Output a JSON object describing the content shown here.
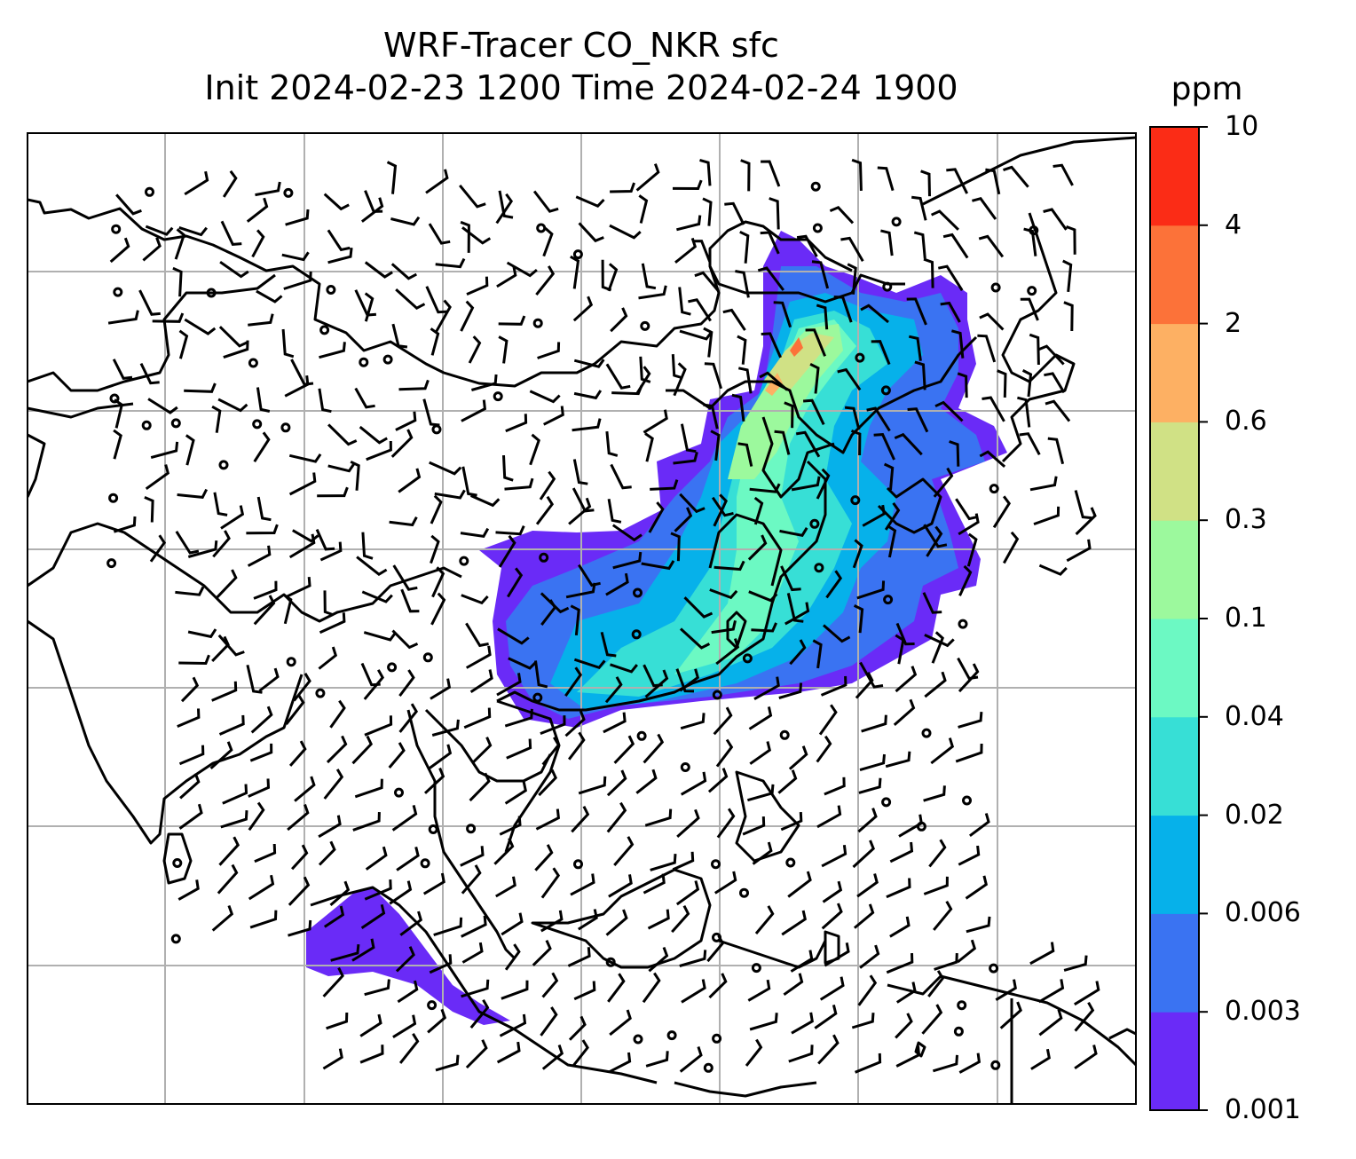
{
  "title": {
    "line1": "WRF-Tracer CO_NKR sfc",
    "line2": "Init 2024-02-23 1200 Time 2024-02-24 1900"
  },
  "colorbar": {
    "unit": "ppm",
    "ticks": [
      "0.001",
      "0.003",
      "0.006",
      "0.02",
      "0.04",
      "0.1",
      "0.3",
      "0.6",
      "2",
      "4",
      "10"
    ],
    "colors": [
      "#6a2bf7",
      "#3a73f2",
      "#06b1ea",
      "#37dfd6",
      "#6cf9c3",
      "#9cf99d",
      "#d0e185",
      "#fdb063",
      "#fc7239",
      "#fb2c16"
    ]
  },
  "map": {
    "gridlines": true,
    "wind_barbs": true,
    "field": "CO_NKR surface tracer concentration"
  }
}
